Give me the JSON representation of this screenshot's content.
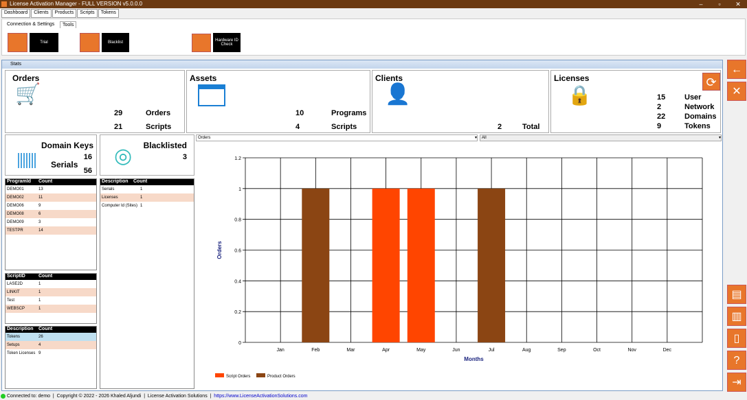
{
  "window": {
    "title": "License Activation Manager - FULL VERSION v5.0.0.0"
  },
  "menu_tabs": [
    "Dashboard",
    "Clients",
    "Products",
    "Scripts",
    "Tokens"
  ],
  "ribbon": {
    "tabs": [
      "Connection & Settings",
      "Tools"
    ],
    "buttons": [
      "Trial",
      "Blacklist",
      "Hardware ID Check"
    ]
  },
  "stats": {
    "title": "Stats",
    "orders": {
      "title": "Orders",
      "rows": [
        {
          "value": "29",
          "label": "Orders"
        },
        {
          "value": "21",
          "label": "Scripts"
        }
      ]
    },
    "assets": {
      "title": "Assets",
      "rows": [
        {
          "value": "10",
          "label": "Programs"
        },
        {
          "value": "4",
          "label": "Scripts"
        }
      ]
    },
    "clients": {
      "title": "Clients",
      "value": "2",
      "label": "Total"
    },
    "licenses": {
      "title": "Licenses",
      "rows": [
        {
          "value": "15",
          "label": "User"
        },
        {
          "value": "2",
          "label": "Network"
        },
        {
          "value": "22",
          "label": "Domains"
        },
        {
          "value": "9",
          "label": "Tokens"
        }
      ]
    },
    "domain_keys": {
      "title": "Domain Keys",
      "value": "16",
      "serials_label": "Serials",
      "serials": "56"
    },
    "blacklisted": {
      "title": "Blacklisted",
      "value": "3"
    }
  },
  "grid_programs": {
    "headers": [
      "ProgramId",
      "Count"
    ],
    "rows": [
      [
        "DEMO01",
        "13"
      ],
      [
        "DEMO02",
        "11"
      ],
      [
        "DEMO06",
        "9"
      ],
      [
        "DEMO08",
        "6"
      ],
      [
        "DEMO09",
        "3"
      ],
      [
        "TESTPR",
        "14"
      ]
    ]
  },
  "grid_scripts": {
    "headers": [
      "ScriptID",
      "Count"
    ],
    "rows": [
      [
        "LASE2D",
        "1"
      ],
      [
        "LINKIT",
        "1"
      ],
      [
        "Test",
        "1"
      ],
      [
        "WEBSCP",
        "1"
      ]
    ]
  },
  "grid_tokens": {
    "headers": [
      "Description",
      "Count"
    ],
    "rows": [
      [
        "Tokens",
        "26"
      ],
      [
        "Setups",
        "4"
      ],
      [
        "Token Licenses",
        "9"
      ]
    ]
  },
  "grid_blacklist": {
    "headers": [
      "Description",
      "Count"
    ],
    "rows": [
      [
        "Serials",
        "1"
      ],
      [
        "Licenses",
        "1"
      ],
      [
        "Computer Id (Sites)",
        "1"
      ]
    ]
  },
  "chart_select": "Orders",
  "filter_select": "All",
  "chart_data": {
    "type": "bar",
    "categories": [
      "Jan",
      "Feb",
      "Mar",
      "Apr",
      "May",
      "Jun",
      "Jul",
      "Aug",
      "Sep",
      "Oct",
      "Nov",
      "Dec"
    ],
    "series": [
      {
        "name": "Script Orders",
        "color": "#ff4500",
        "values": [
          0,
          0,
          0,
          1,
          1,
          0,
          0,
          0,
          0,
          0,
          0,
          0
        ]
      },
      {
        "name": "Product Orders",
        "color": "#8b4513",
        "values": [
          0,
          1,
          0,
          0,
          0,
          0,
          1,
          0,
          0,
          0,
          0,
          0
        ]
      }
    ],
    "xlabel": "Months",
    "ylabel": "Orders",
    "ylim": [
      0,
      1.2
    ],
    "yticks": [
      "0",
      "0.2",
      "0.4",
      "0.6",
      "0.8",
      "1",
      "1.2"
    ],
    "grid": true,
    "legend": "bottom-left"
  },
  "status": {
    "text": "Connected to: demo  |  Copyright © 2022 - 2026 Khaled Aljundi  |  License Activation Solutions  |  ",
    "link": "https://www.LicenseActivationSolutions.com"
  }
}
